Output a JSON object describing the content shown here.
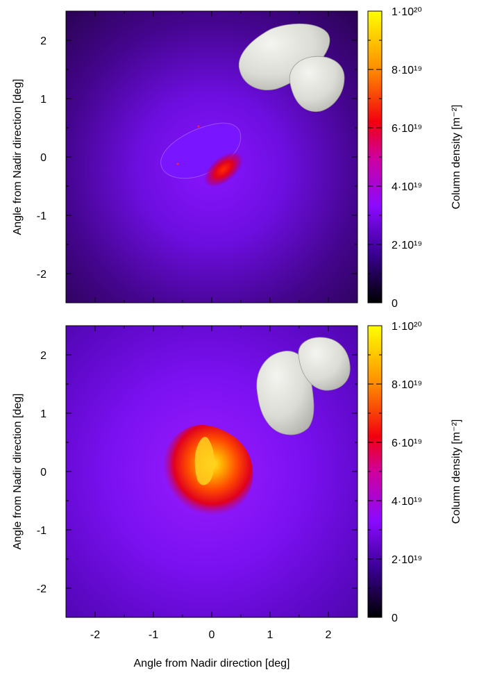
{
  "chart_data": [
    {
      "type": "heatmap",
      "panel": "top",
      "xlabel": "",
      "ylabel": "Angle from Nadir direction [deg]",
      "xlim": [
        -2.5,
        2.5
      ],
      "ylim": [
        -2.5,
        2.5
      ],
      "x_ticks": [],
      "y_ticks": [
        -2,
        -1,
        0,
        1,
        2
      ],
      "colorbar": {
        "label": "Column density [m⁻²]",
        "range": [
          0,
          1e+20
        ],
        "ticks": [
          {
            "value": 0,
            "label": "0"
          },
          {
            "value": 2e+19,
            "label": "2·10¹⁹"
          },
          {
            "value": 4e+19,
            "label": "4·10¹⁹"
          },
          {
            "value": 6e+19,
            "label": "6·10¹⁹"
          },
          {
            "value": 8e+19,
            "label": "8·10¹⁹"
          },
          {
            "value": 1e+20,
            "label": "1·10²⁰"
          }
        ],
        "colormap": [
          "#000000",
          "#3a0094",
          "#8a0aff",
          "#d0009c",
          "#f2000f",
          "#ff8c00",
          "#ffff00"
        ]
      },
      "background_peak": 2.4e+19,
      "feature": {
        "center": [
          -0.25,
          0.0
        ],
        "shape": "shadowed-nucleus",
        "jet_peak": 5.5e+19
      }
    },
    {
      "type": "heatmap",
      "panel": "bottom",
      "xlabel": "Angle from Nadir direction [deg]",
      "ylabel": "Angle from Nadir direction [deg]",
      "xlim": [
        -2.5,
        2.5
      ],
      "ylim": [
        -2.5,
        2.5
      ],
      "x_ticks": [
        -2,
        -1,
        0,
        1,
        2
      ],
      "y_ticks": [
        -2,
        -1,
        0,
        1,
        2
      ],
      "colorbar": {
        "label": "Column density [m⁻²]",
        "range": [
          0,
          1e+20
        ],
        "ticks": [
          {
            "value": 0,
            "label": "0"
          },
          {
            "value": 2e+19,
            "label": "2·10¹⁹"
          },
          {
            "value": 4e+19,
            "label": "4·10¹⁹"
          },
          {
            "value": 6e+19,
            "label": "6·10¹⁹"
          },
          {
            "value": 8e+19,
            "label": "8·10¹⁹"
          },
          {
            "value": 1e+20,
            "label": "1·10²⁰"
          }
        ],
        "colormap": [
          "#000000",
          "#3a0094",
          "#8a0aff",
          "#d0009c",
          "#f2000f",
          "#ff8c00",
          "#ffff00"
        ]
      },
      "background_peak": 3e+19,
      "feature": {
        "center": [
          -0.35,
          -0.1
        ],
        "shape": "bright-coma-core",
        "peak": 9.5e+19
      }
    }
  ]
}
